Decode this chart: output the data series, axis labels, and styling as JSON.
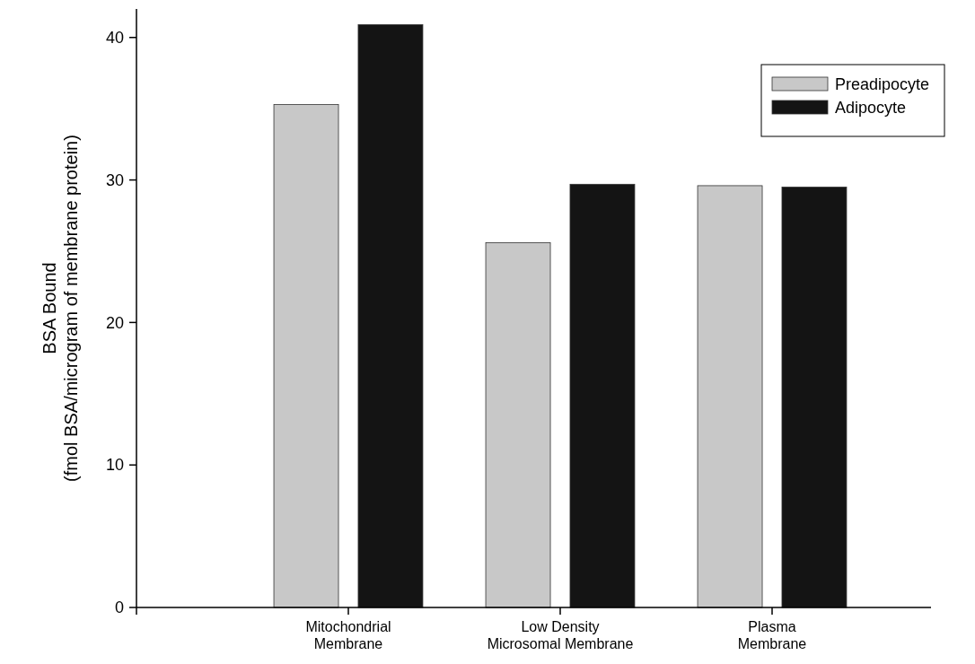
{
  "chart_data": {
    "type": "bar",
    "ylabel": "BSA Bound\n(fmol BSA/microgram of membrane protein)",
    "categories": [
      "Mitochondrial\nMembrane",
      "Low Density\nMicrosomal Membrane",
      "Plasma\nMembrane"
    ],
    "series": [
      {
        "name": "Preadipocyte",
        "color": "#c8c8c8",
        "values": [
          35.3,
          25.6,
          29.6
        ]
      },
      {
        "name": "Adipocyte",
        "color": "#141414",
        "values": [
          40.9,
          29.7,
          29.5
        ]
      }
    ],
    "ylim": [
      0,
      42
    ],
    "yticks": [
      0,
      10,
      20,
      30,
      40
    ],
    "legend": "top right",
    "grid": false
  }
}
